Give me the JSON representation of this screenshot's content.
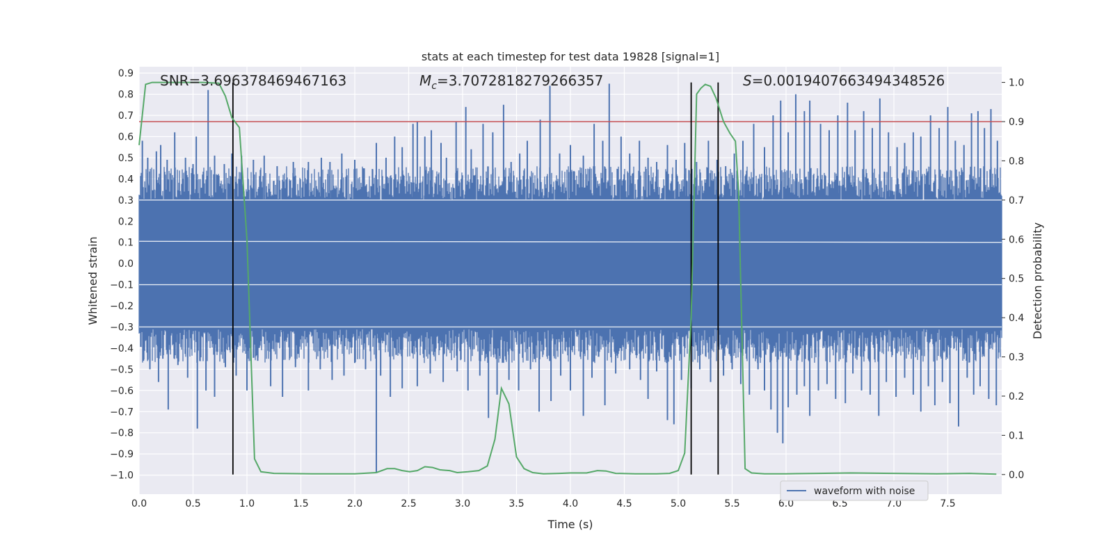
{
  "chart_data": {
    "type": "line",
    "title": "stats at each timestep for test data 19828 [signal=1]",
    "xlabel": "Time (s)",
    "ylabel": "Whitened strain",
    "ylabel_right": "Detection probability",
    "xlim": [
      0.0,
      8.0
    ],
    "ylim": [
      -1.09,
      0.93
    ],
    "ylim_right": [
      -0.05,
      1.04
    ],
    "xticks": [
      "0.0",
      "0.5",
      "1.0",
      "1.5",
      "2.0",
      "2.5",
      "3.0",
      "3.5",
      "4.0",
      "4.5",
      "5.0",
      "5.5",
      "6.0",
      "6.5",
      "7.0",
      "7.5"
    ],
    "yticks": [
      "0.9",
      "0.8",
      "0.7",
      "0.6",
      "0.5",
      "0.4",
      "0.3",
      "0.2",
      "0.1",
      "0.0",
      "-0.1",
      "-0.2",
      "-0.3",
      "-0.4",
      "-0.5",
      "-0.6",
      "-0.7",
      "-0.8",
      "-0.9",
      "-1.0"
    ],
    "yticks_right": [
      "1.0",
      "0.9",
      "0.8",
      "0.7",
      "0.6",
      "0.5",
      "0.4",
      "0.3",
      "0.2",
      "0.1",
      "0.0"
    ],
    "annotations": {
      "snr": "SNR=3.696378469467163",
      "mc_symbol": "M",
      "mc_sub": "c",
      "mc_value": "=3.7072818279266357",
      "s_symbol": "S",
      "s_value": "=0.0019407663494348526"
    },
    "legend": {
      "label": "waveform with noise",
      "placement": "lower-right"
    },
    "threshold": 0.9,
    "vlines": [
      0.87,
      5.12,
      5.37
    ],
    "vline_range": [
      0.0,
      1.0
    ],
    "waveform": {
      "name": "waveform with noise",
      "x_range": [
        0.0,
        8.0
      ],
      "band_upper": 0.3,
      "band_lower": -0.31,
      "spikes_up": [
        [
          0.03,
          0.58
        ],
        [
          0.08,
          0.5
        ],
        [
          0.16,
          0.53
        ],
        [
          0.2,
          0.56
        ],
        [
          0.26,
          0.49
        ],
        [
          0.33,
          0.62
        ],
        [
          0.43,
          0.5
        ],
        [
          0.5,
          0.47
        ],
        [
          0.53,
          0.6
        ],
        [
          0.64,
          0.82
        ],
        [
          0.7,
          0.51
        ],
        [
          0.79,
          0.47
        ],
        [
          0.86,
          0.52
        ],
        [
          0.95,
          0.51
        ],
        [
          1.06,
          0.49
        ],
        [
          1.16,
          0.51
        ],
        [
          1.28,
          0.46
        ],
        [
          1.43,
          0.48
        ],
        [
          1.57,
          0.48
        ],
        [
          1.69,
          0.5
        ],
        [
          1.77,
          0.48
        ],
        [
          1.88,
          0.52
        ],
        [
          2.0,
          0.49
        ],
        [
          2.08,
          0.45
        ],
        [
          2.2,
          0.57
        ],
        [
          2.29,
          0.5
        ],
        [
          2.37,
          0.6
        ],
        [
          2.44,
          0.55
        ],
        [
          2.54,
          0.66
        ],
        [
          2.58,
          0.67
        ],
        [
          2.65,
          0.6
        ],
        [
          2.71,
          0.63
        ],
        [
          2.8,
          0.57
        ],
        [
          2.85,
          0.5
        ],
        [
          2.94,
          0.67
        ],
        [
          3.03,
          0.74
        ],
        [
          3.08,
          0.54
        ],
        [
          3.19,
          0.66
        ],
        [
          3.28,
          0.62
        ],
        [
          3.38,
          0.75
        ],
        [
          3.45,
          0.48
        ],
        [
          3.53,
          0.52
        ],
        [
          3.6,
          0.58
        ],
        [
          3.72,
          0.68
        ],
        [
          3.81,
          0.84
        ],
        [
          3.9,
          0.52
        ],
        [
          4.0,
          0.56
        ],
        [
          4.12,
          0.51
        ],
        [
          4.22,
          0.66
        ],
        [
          4.3,
          0.58
        ],
        [
          4.36,
          0.85
        ],
        [
          4.47,
          0.6
        ],
        [
          4.55,
          0.52
        ],
        [
          4.64,
          0.58
        ],
        [
          4.72,
          0.5
        ],
        [
          4.8,
          0.48
        ],
        [
          4.9,
          0.56
        ],
        [
          4.98,
          0.49
        ],
        [
          5.06,
          0.57
        ],
        [
          5.17,
          0.48
        ],
        [
          5.28,
          0.58
        ],
        [
          5.36,
          0.49
        ],
        [
          5.44,
          0.46
        ],
        [
          5.52,
          0.52
        ],
        [
          5.6,
          0.58
        ],
        [
          5.7,
          0.66
        ],
        [
          5.8,
          0.55
        ],
        [
          5.88,
          0.7
        ],
        [
          5.95,
          0.77
        ],
        [
          6.02,
          0.62
        ],
        [
          6.09,
          0.8
        ],
        [
          6.17,
          0.72
        ],
        [
          6.22,
          0.77
        ],
        [
          6.32,
          0.66
        ],
        [
          6.4,
          0.63
        ],
        [
          6.48,
          0.7
        ],
        [
          6.57,
          0.76
        ],
        [
          6.64,
          0.63
        ],
        [
          6.72,
          0.72
        ],
        [
          6.8,
          0.64
        ],
        [
          6.87,
          0.78
        ],
        [
          6.95,
          0.62
        ],
        [
          7.03,
          0.55
        ],
        [
          7.1,
          0.57
        ],
        [
          7.18,
          0.62
        ],
        [
          7.25,
          0.6
        ],
        [
          7.34,
          0.7
        ],
        [
          7.42,
          0.64
        ],
        [
          7.5,
          0.74
        ],
        [
          7.57,
          0.58
        ],
        [
          7.65,
          0.56
        ],
        [
          7.72,
          0.71
        ],
        [
          7.78,
          0.72
        ],
        [
          7.84,
          0.64
        ],
        [
          7.9,
          0.73
        ],
        [
          7.96,
          0.58
        ]
      ],
      "spikes_down": [
        [
          0.04,
          -0.46
        ],
        [
          0.1,
          -0.5
        ],
        [
          0.18,
          -0.56
        ],
        [
          0.22,
          -0.45
        ],
        [
          0.27,
          -0.69
        ],
        [
          0.36,
          -0.48
        ],
        [
          0.45,
          -0.54
        ],
        [
          0.54,
          -0.78
        ],
        [
          0.62,
          -0.6
        ],
        [
          0.7,
          -0.63
        ],
        [
          0.8,
          -0.49
        ],
        [
          0.9,
          -0.53
        ],
        [
          1.0,
          -0.6
        ],
        [
          1.1,
          -0.46
        ],
        [
          1.22,
          -0.58
        ],
        [
          1.33,
          -0.63
        ],
        [
          1.45,
          -0.49
        ],
        [
          1.57,
          -0.6
        ],
        [
          1.68,
          -0.5
        ],
        [
          1.79,
          -0.55
        ],
        [
          1.9,
          -0.53
        ],
        [
          2.0,
          -0.47
        ],
        [
          2.1,
          -0.5
        ],
        [
          2.2,
          -0.99
        ],
        [
          2.24,
          -0.53
        ],
        [
          2.33,
          -0.63
        ],
        [
          2.44,
          -0.59
        ],
        [
          2.58,
          -0.58
        ],
        [
          2.7,
          -0.52
        ],
        [
          2.82,
          -0.56
        ],
        [
          2.95,
          -0.51
        ],
        [
          3.05,
          -0.6
        ],
        [
          3.16,
          -0.53
        ],
        [
          3.24,
          -0.73
        ],
        [
          3.32,
          -0.62
        ],
        [
          3.43,
          -0.55
        ],
        [
          3.52,
          -0.6
        ],
        [
          3.63,
          -0.5
        ],
        [
          3.71,
          -0.7
        ],
        [
          3.82,
          -0.65
        ],
        [
          3.91,
          -0.53
        ],
        [
          4.0,
          -0.6
        ],
        [
          4.12,
          -0.72
        ],
        [
          4.2,
          -0.54
        ],
        [
          4.32,
          -0.67
        ],
        [
          4.42,
          -0.52
        ],
        [
          4.55,
          -0.5
        ],
        [
          4.65,
          -0.55
        ],
        [
          4.72,
          -0.64
        ],
        [
          4.8,
          -0.51
        ],
        [
          4.9,
          -0.74
        ],
        [
          4.96,
          -0.76
        ],
        [
          5.03,
          -0.55
        ],
        [
          5.12,
          -0.59
        ],
        [
          5.2,
          -0.5
        ],
        [
          5.3,
          -0.56
        ],
        [
          5.42,
          -0.53
        ],
        [
          5.5,
          -0.5
        ],
        [
          5.58,
          -0.57
        ],
        [
          5.66,
          -0.62
        ],
        [
          5.74,
          -0.5
        ],
        [
          5.8,
          -0.6
        ],
        [
          5.86,
          -0.69
        ],
        [
          5.92,
          -0.8
        ],
        [
          5.97,
          -0.85
        ],
        [
          6.02,
          -0.68
        ],
        [
          6.1,
          -0.62
        ],
        [
          6.17,
          -0.58
        ],
        [
          6.22,
          -0.72
        ],
        [
          6.3,
          -0.6
        ],
        [
          6.38,
          -0.57
        ],
        [
          6.46,
          -0.64
        ],
        [
          6.55,
          -0.66
        ],
        [
          6.62,
          -0.52
        ],
        [
          6.7,
          -0.6
        ],
        [
          6.78,
          -0.62
        ],
        [
          6.86,
          -0.72
        ],
        [
          6.93,
          -0.56
        ],
        [
          7.02,
          -0.63
        ],
        [
          7.1,
          -0.54
        ],
        [
          7.18,
          -0.62
        ],
        [
          7.25,
          -0.7
        ],
        [
          7.32,
          -0.58
        ],
        [
          7.38,
          -0.67
        ],
        [
          7.45,
          -0.56
        ],
        [
          7.52,
          -0.66
        ],
        [
          7.6,
          -0.77
        ],
        [
          7.68,
          -0.54
        ],
        [
          7.74,
          -0.62
        ],
        [
          7.8,
          -0.58
        ],
        [
          7.88,
          -0.64
        ],
        [
          7.95,
          -0.67
        ]
      ]
    },
    "probability": {
      "name": "detection probability",
      "points": [
        [
          0.0,
          0.84
        ],
        [
          0.06,
          0.995
        ],
        [
          0.12,
          1.0
        ],
        [
          0.3,
          1.0
        ],
        [
          0.6,
          1.0
        ],
        [
          0.74,
          0.998
        ],
        [
          0.8,
          0.965
        ],
        [
          0.86,
          0.91
        ],
        [
          0.93,
          0.885
        ],
        [
          1.0,
          0.6
        ],
        [
          1.07,
          0.04
        ],
        [
          1.13,
          0.007
        ],
        [
          1.25,
          0.003
        ],
        [
          1.6,
          0.002
        ],
        [
          2.0,
          0.002
        ],
        [
          2.2,
          0.005
        ],
        [
          2.3,
          0.015
        ],
        [
          2.37,
          0.015
        ],
        [
          2.44,
          0.01
        ],
        [
          2.51,
          0.007
        ],
        [
          2.58,
          0.01
        ],
        [
          2.65,
          0.02
        ],
        [
          2.72,
          0.018
        ],
        [
          2.79,
          0.012
        ],
        [
          2.88,
          0.01
        ],
        [
          2.95,
          0.005
        ],
        [
          3.05,
          0.007
        ],
        [
          3.15,
          0.01
        ],
        [
          3.23,
          0.022
        ],
        [
          3.3,
          0.09
        ],
        [
          3.36,
          0.22
        ],
        [
          3.43,
          0.18
        ],
        [
          3.5,
          0.045
        ],
        [
          3.57,
          0.015
        ],
        [
          3.65,
          0.005
        ],
        [
          3.75,
          0.002
        ],
        [
          3.9,
          0.003
        ],
        [
          4.0,
          0.004
        ],
        [
          4.15,
          0.004
        ],
        [
          4.25,
          0.01
        ],
        [
          4.33,
          0.009
        ],
        [
          4.42,
          0.003
        ],
        [
          4.6,
          0.002
        ],
        [
          4.8,
          0.002
        ],
        [
          4.92,
          0.003
        ],
        [
          5.0,
          0.01
        ],
        [
          5.06,
          0.055
        ],
        [
          5.12,
          0.4
        ],
        [
          5.17,
          0.97
        ],
        [
          5.21,
          0.985
        ],
        [
          5.25,
          0.995
        ],
        [
          5.3,
          0.99
        ],
        [
          5.35,
          0.96
        ],
        [
          5.42,
          0.9
        ],
        [
          5.48,
          0.87
        ],
        [
          5.53,
          0.85
        ],
        [
          5.56,
          0.72
        ],
        [
          5.62,
          0.015
        ],
        [
          5.68,
          0.004
        ],
        [
          5.8,
          0.002
        ],
        [
          6.0,
          0.002
        ],
        [
          6.3,
          0.003
        ],
        [
          6.6,
          0.004
        ],
        [
          7.0,
          0.003
        ],
        [
          7.4,
          0.002
        ],
        [
          7.7,
          0.003
        ],
        [
          7.95,
          0.001
        ]
      ]
    },
    "colors": {
      "background": "#eaeaf2",
      "grid": "#ffffff",
      "waveform": "#4c72b0",
      "probability": "#55a868",
      "threshold": "#c44e52",
      "vline": "#000000",
      "text": "#262626"
    }
  }
}
